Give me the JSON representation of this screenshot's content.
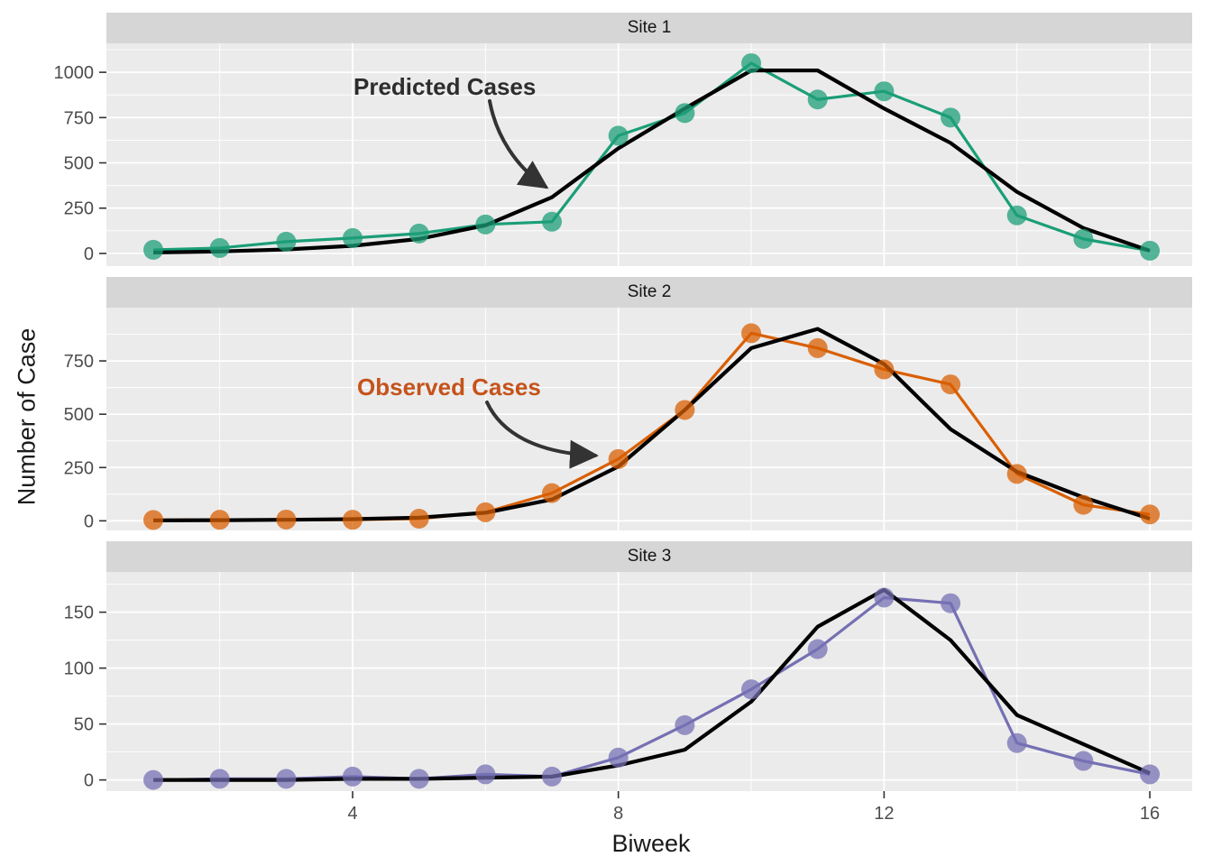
{
  "figure": {
    "xlabel": "Biweek",
    "ylabel": "Number of Case",
    "x_ticks": [
      4,
      8,
      12,
      16
    ],
    "background_color": "#ffffff",
    "panel_color": "#ebebeb",
    "strip_color": "#d6d6d6",
    "grid_color": "#ffffff",
    "tick_label_color": "#4d4d4d"
  },
  "annotations": {
    "predicted_label": "Predicted Cases",
    "predicted_color": "#2d2d2d",
    "observed_label": "Observed Cases",
    "observed_color": "#c5531b",
    "arrow_color": "#333333"
  },
  "chart_data": [
    {
      "type": "line",
      "title": "Site 1",
      "x": [
        1,
        2,
        3,
        4,
        5,
        6,
        7,
        8,
        9,
        10,
        11,
        12,
        13,
        14,
        15,
        16
      ],
      "series": [
        {
          "name": "Observed Cases",
          "role": "observed",
          "color": "#1b9e77",
          "values": [
            20,
            30,
            65,
            85,
            110,
            160,
            175,
            650,
            775,
            1050,
            850,
            895,
            750,
            210,
            80,
            15
          ]
        },
        {
          "name": "Predicted Cases",
          "role": "predicted",
          "color": "#000000",
          "values": [
            5,
            11,
            22,
            42,
            80,
            155,
            310,
            580,
            800,
            1010,
            1010,
            800,
            610,
            340,
            140,
            15
          ]
        }
      ],
      "xlim": [
        0.3,
        16.66
      ],
      "ylim": [
        -70,
        1160
      ],
      "yticks": [
        0,
        250,
        500,
        750,
        1000
      ],
      "grid": true,
      "legend": "none"
    },
    {
      "type": "line",
      "title": "Site 2",
      "x": [
        1,
        2,
        3,
        4,
        5,
        6,
        7,
        8,
        9,
        10,
        11,
        12,
        13,
        14,
        15,
        16
      ],
      "series": [
        {
          "name": "Observed Cases",
          "role": "observed",
          "color": "#d95f02",
          "values": [
            4,
            5,
            6,
            5,
            10,
            40,
            130,
            290,
            520,
            880,
            810,
            710,
            640,
            220,
            75,
            30
          ]
        },
        {
          "name": "Predicted Cases",
          "role": "predicted",
          "color": "#000000",
          "values": [
            2,
            3,
            5,
            8,
            15,
            38,
            100,
            255,
            520,
            810,
            900,
            735,
            430,
            230,
            110,
            10
          ]
        }
      ],
      "xlim": [
        0.3,
        16.66
      ],
      "ylim": [
        -45,
        1000
      ],
      "yticks": [
        0,
        250,
        500,
        750
      ],
      "grid": true,
      "legend": "none"
    },
    {
      "type": "line",
      "title": "Site 3",
      "x": [
        1,
        2,
        3,
        4,
        5,
        6,
        7,
        8,
        9,
        10,
        11,
        12,
        13,
        14,
        15,
        16
      ],
      "series": [
        {
          "name": "Observed Cases",
          "role": "observed",
          "color": "#7570b3",
          "values": [
            0,
            1,
            1,
            3,
            1,
            5,
            3,
            20,
            49,
            81,
            117,
            163,
            158,
            33,
            17,
            5
          ]
        },
        {
          "name": "Predicted Cases",
          "role": "predicted",
          "color": "#000000",
          "values": [
            0,
            0,
            0,
            1,
            1,
            2,
            3,
            13,
            27,
            70,
            137,
            170,
            125,
            58,
            32,
            6
          ]
        }
      ],
      "xlim": [
        0.3,
        16.66
      ],
      "ylim": [
        -10,
        186
      ],
      "yticks": [
        0,
        50,
        100,
        150
      ],
      "grid": true,
      "legend": "none"
    }
  ]
}
